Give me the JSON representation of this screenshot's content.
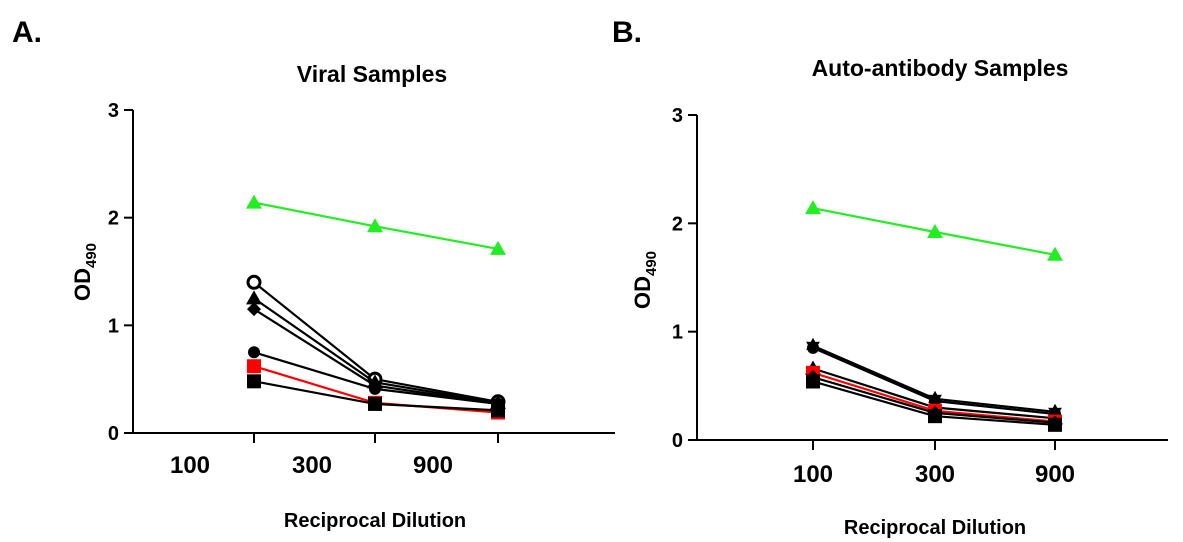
{
  "chart_data": [
    {
      "panel_label": "A.",
      "type": "line",
      "title": "Viral Samples",
      "xlabel": "Reciprocal Dilution",
      "ylabel": "OD",
      "ylabel_sub": "490",
      "ylim": [
        0,
        3
      ],
      "yticks": [
        "0",
        "1",
        "2",
        "3"
      ],
      "categories": [
        "100",
        "300",
        "900"
      ],
      "x": [
        "100",
        "300",
        "900"
      ],
      "series": [
        {
          "marker": "triangle",
          "color": "#22ee22",
          "values": [
            2.14,
            1.92,
            1.71
          ]
        },
        {
          "marker": "open-circle",
          "color": "#000000",
          "values": [
            1.4,
            0.5,
            0.29
          ]
        },
        {
          "marker": "triangle",
          "color": "#000000",
          "values": [
            1.25,
            0.47,
            0.28
          ]
        },
        {
          "marker": "diamond",
          "color": "#000000",
          "values": [
            1.15,
            0.44,
            0.27
          ]
        },
        {
          "marker": "circle",
          "color": "#000000",
          "values": [
            0.75,
            0.41,
            0.27
          ]
        },
        {
          "marker": "square",
          "color": "#ff0000",
          "values": [
            0.62,
            0.28,
            0.19
          ]
        },
        {
          "marker": "square",
          "color": "#000000",
          "values": [
            0.48,
            0.27,
            0.21
          ]
        }
      ]
    },
    {
      "panel_label": "B.",
      "type": "line",
      "title": "Auto-antibody Samples",
      "xlabel": "Reciprocal Dilution",
      "ylabel": "OD",
      "ylabel_sub": "490",
      "ylim": [
        0,
        3
      ],
      "yticks": [
        "0",
        "1",
        "2",
        "3"
      ],
      "categories": [
        "100",
        "300",
        "900"
      ],
      "x": [
        "100",
        "300",
        "900"
      ],
      "series": [
        {
          "marker": "triangle",
          "color": "#22ee22",
          "values": [
            2.14,
            1.92,
            1.71
          ]
        },
        {
          "marker": "star",
          "color": "#000000",
          "values": [
            0.87,
            0.38,
            0.26
          ]
        },
        {
          "marker": "circle",
          "color": "#000000",
          "values": [
            0.85,
            0.36,
            0.24
          ]
        },
        {
          "marker": "triangle",
          "color": "#000000",
          "values": [
            0.66,
            0.3,
            0.2
          ]
        },
        {
          "marker": "square",
          "color": "#ff0000",
          "values": [
            0.62,
            0.27,
            0.17
          ]
        },
        {
          "marker": "diamond",
          "color": "#000000",
          "values": [
            0.58,
            0.25,
            0.16
          ]
        },
        {
          "marker": "square",
          "color": "#000000",
          "values": [
            0.54,
            0.22,
            0.14
          ]
        }
      ]
    }
  ]
}
